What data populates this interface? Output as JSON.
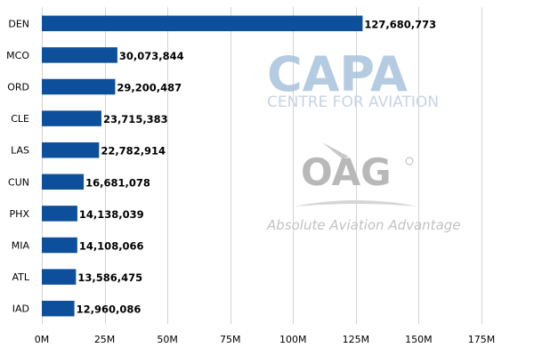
{
  "chart_data": {
    "type": "bar",
    "orientation": "horizontal",
    "categories": [
      "DEN",
      "MCO",
      "ORD",
      "CLE",
      "LAS",
      "CUN",
      "PHX",
      "MIA",
      "ATL",
      "IAD"
    ],
    "values": [
      127680773,
      30073844,
      29200487,
      23715383,
      22782914,
      16681078,
      14138039,
      14108066,
      13586475,
      12960086
    ],
    "value_labels": [
      "127,680,773",
      "30,073,844",
      "29,200,487",
      "23,715,383",
      "22,782,914",
      "16,681,078",
      "14,138,039",
      "14,108,066",
      "13,586,475",
      "12,960,086"
    ],
    "xlim": [
      0,
      175000000
    ],
    "x_ticks": [
      0,
      25000000,
      50000000,
      75000000,
      100000000,
      125000000,
      150000000,
      175000000
    ],
    "x_tick_labels": [
      "0M",
      "25M",
      "50M",
      "75M",
      "100M",
      "125M",
      "150M",
      "175M"
    ],
    "grid": "vertical",
    "bar_color": "#0e4f9c",
    "grid_color": "#d3d3d3",
    "title": "",
    "xlabel": "",
    "ylabel": ""
  },
  "watermark": {
    "capa_logo_text": "CAPA",
    "capa_subtitle": "CENTRE FOR AVIATION",
    "oag_logo_text": "OAG",
    "oag_tagline": "Absolute Aviation Advantage",
    "capa_color": "#a9c2dc",
    "oag_color": "#b8b8b8"
  }
}
